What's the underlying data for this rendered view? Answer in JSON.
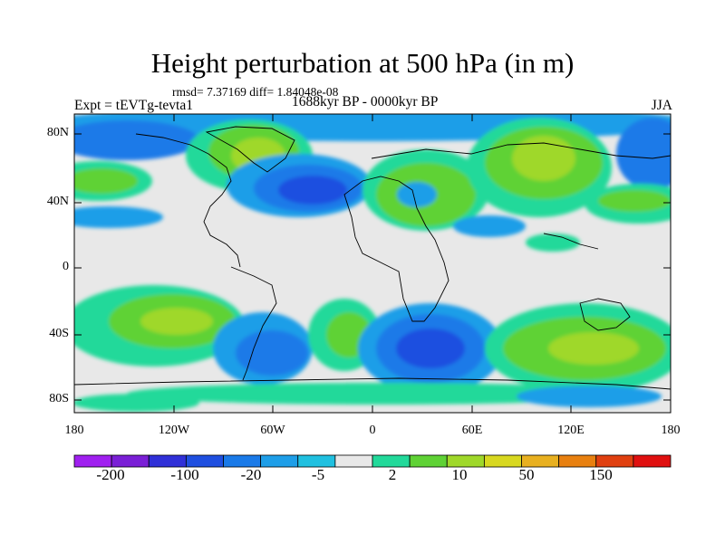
{
  "title": "Height perturbation at 500 hPa (in m)",
  "stats_line": "rmsd= 7.37169 diff= 1.84048e-08",
  "experiment": "Expt = tEVTg-tevta1",
  "period": "1688kyr BP - 0000kyr BP",
  "season": "JJA",
  "map": {
    "y_ticks": [
      "80N",
      "40N",
      "0",
      "40S",
      "80S"
    ],
    "x_ticks": [
      "180",
      "120W",
      "60W",
      "0",
      "60E",
      "120E",
      "180"
    ],
    "background_color": "#e8e8e8"
  },
  "colorbar": {
    "labels": [
      "-200",
      "-100",
      "-20",
      "-5",
      "2",
      "10",
      "50",
      "150"
    ],
    "colors": [
      "#a020f0",
      "#7a1fd6",
      "#3030d8",
      "#1f4fe0",
      "#1a7ae8",
      "#1e9ee8",
      "#20c0e0",
      "#e8e8e8",
      "#22d99a",
      "#5fd235",
      "#9fd82a",
      "#d8d820",
      "#e8b020",
      "#e88010",
      "#e04010",
      "#e01010"
    ]
  }
}
